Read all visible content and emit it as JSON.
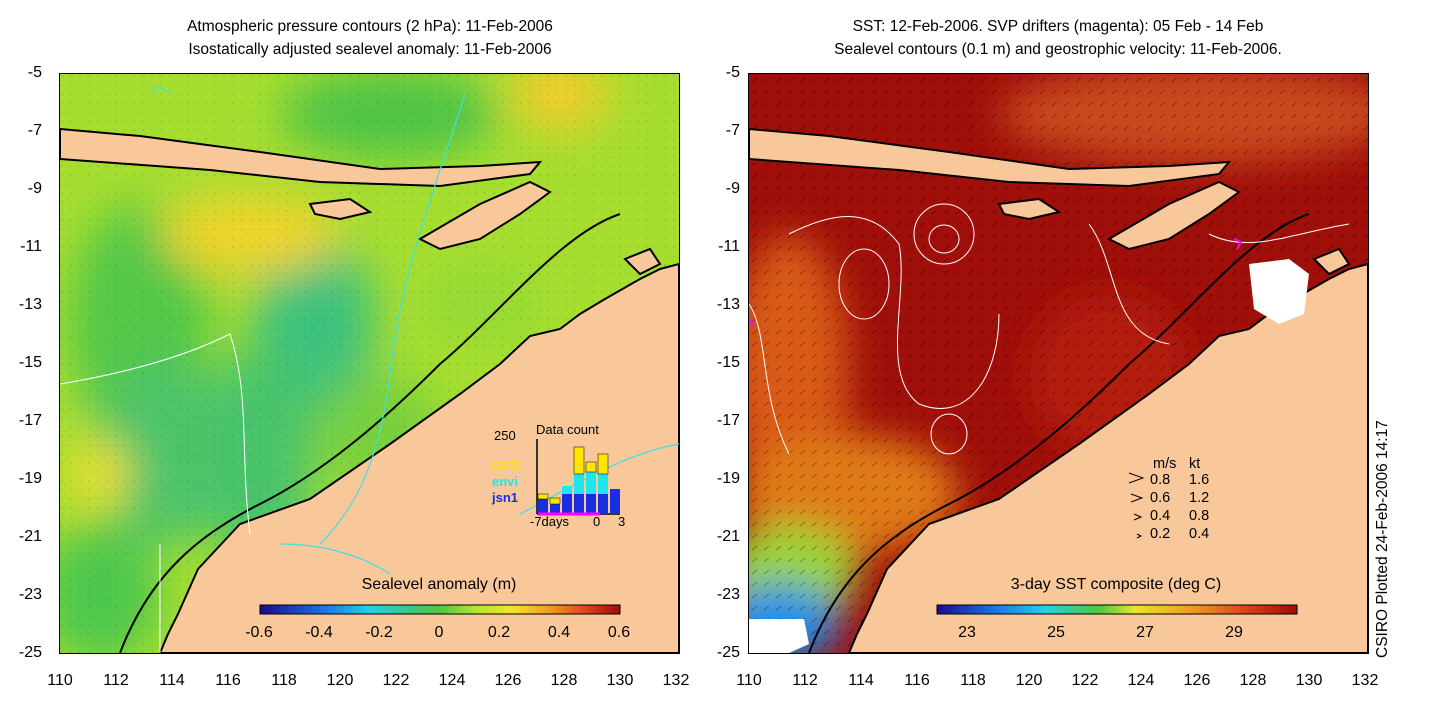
{
  "left_panel": {
    "title_line1": "Atmospheric pressure contours (2 hPa): 11-Feb-2006",
    "title_line2": "Isostatically adjusted sealevel anomaly: 11-Feb-2006",
    "y_ticks": [
      "-5",
      "-7",
      "-9",
      "-11",
      "-13",
      "-15",
      "-17",
      "-19",
      "-21",
      "-23",
      "-25"
    ],
    "x_ticks": [
      "110",
      "112",
      "114",
      "116",
      "118",
      "120",
      "122",
      "124",
      "126",
      "128",
      "130",
      "132"
    ],
    "colorbar_title": "Sealevel anomaly (m)",
    "colorbar_ticks": [
      "-0.6",
      "-0.4",
      "-0.2",
      "0",
      "0.2",
      "0.4",
      "0.6"
    ],
    "data_count": {
      "title": "Data count",
      "max_label": "250",
      "x_labels": [
        "-7days",
        "0",
        "3"
      ],
      "series_labels": [
        "GFO",
        "envi",
        "jsn1"
      ],
      "series_colors": [
        "#ffe600",
        "#1ee6ee",
        "#1a2ee0"
      ]
    }
  },
  "right_panel": {
    "title_line1": "SST: 12-Feb-2006. SVP drifters (magenta): 05 Feb - 14 Feb",
    "title_line2": "Sealevel contours (0.1 m) and geostrophic velocity: 11-Feb-2006.",
    "y_ticks": [
      "-5",
      "-7",
      "-9",
      "-11",
      "-13",
      "-15",
      "-17",
      "-19",
      "-21",
      "-23",
      "-25"
    ],
    "x_ticks": [
      "110",
      "112",
      "114",
      "116",
      "118",
      "120",
      "122",
      "124",
      "126",
      "128",
      "130",
      "132"
    ],
    "colorbar_title": "3-day SST composite (deg C)",
    "colorbar_ticks": [
      "23",
      "25",
      "27",
      "29"
    ],
    "velocity_legend": {
      "header_ms": "m/s",
      "header_kt": "kt",
      "rows": [
        {
          "ms": "0.8",
          "kt": "1.6"
        },
        {
          "ms": "0.6",
          "kt": "1.2"
        },
        {
          "ms": "0.4",
          "kt": "0.8"
        },
        {
          "ms": "0.2",
          "kt": "0.4"
        }
      ]
    }
  },
  "credit": "CSIRO Plotted 24-Feb-2006 14:17",
  "colors": {
    "land": "#f9c89a",
    "sla_base": "#a8e032",
    "sst_warm": "#a00f0a",
    "contour_cyan": "#3ee0e6",
    "drifter": "#ff00ff"
  }
}
